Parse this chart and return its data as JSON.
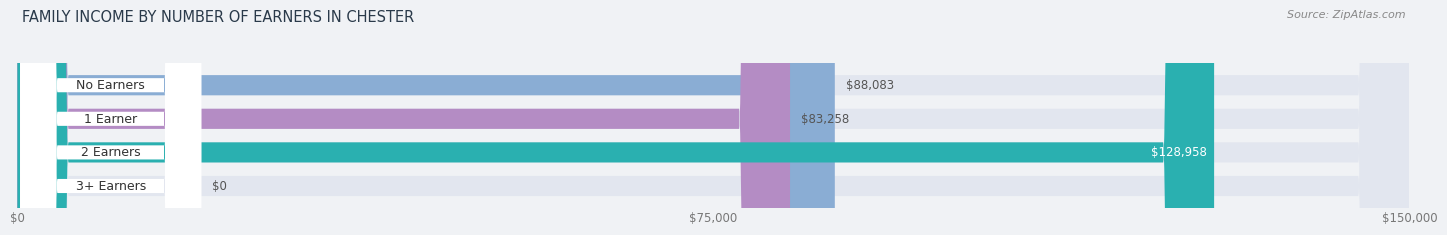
{
  "title": "FAMILY INCOME BY NUMBER OF EARNERS IN CHESTER",
  "source": "Source: ZipAtlas.com",
  "categories": [
    "No Earners",
    "1 Earner",
    "2 Earners",
    "3+ Earners"
  ],
  "values": [
    88083,
    83258,
    128958,
    0
  ],
  "bar_colors": [
    "#8aadd4",
    "#b48cc4",
    "#2ab0b0",
    "#a8b8e8"
  ],
  "label_colors": [
    "#333333",
    "#333333",
    "#ffffff",
    "#333333"
  ],
  "xmax": 150000,
  "xticks": [
    0,
    75000,
    150000
  ],
  "xtick_labels": [
    "$0",
    "$75,000",
    "$150,000"
  ],
  "background_color": "#f0f2f5",
  "bar_bg_color": "#e2e6ef",
  "bar_height": 0.6,
  "title_fontsize": 10.5,
  "label_fontsize": 9,
  "value_fontsize": 8.5,
  "source_fontsize": 8
}
